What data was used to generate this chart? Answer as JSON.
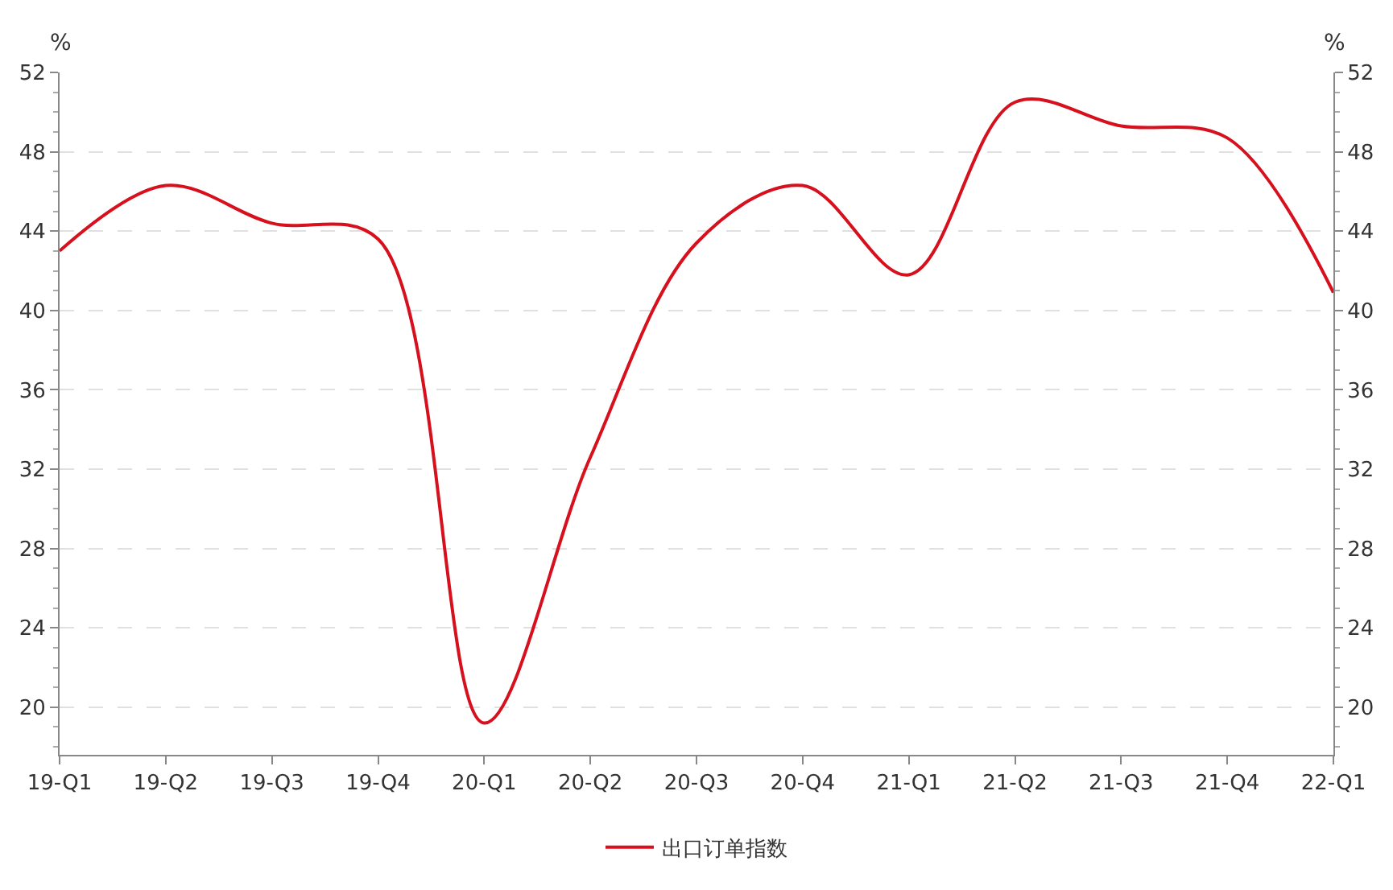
{
  "chart_data": {
    "type": "line",
    "ylabel": "%",
    "y2label": "%",
    "categories": [
      "19-Q1",
      "19-Q2",
      "19-Q3",
      "19-Q4",
      "20-Q1",
      "20-Q2",
      "20-Q3",
      "20-Q4",
      "21-Q1",
      "21-Q2",
      "21-Q3",
      "21-Q4",
      "22-Q1"
    ],
    "series": [
      {
        "name": "出口订单指数",
        "color": "#d7101e",
        "values": [
          43.0,
          46.3,
          44.4,
          43.6,
          19.2,
          32.6,
          43.4,
          46.3,
          41.8,
          50.5,
          49.3,
          48.7,
          40.9
        ]
      }
    ],
    "ylim": [
      17.6,
      52
    ],
    "yticks": [
      20,
      24,
      28,
      32,
      36,
      40,
      44,
      48,
      52
    ],
    "y2lim": [
      17.6,
      52
    ],
    "y2ticks": [
      20,
      24,
      28,
      32,
      36,
      40,
      44,
      48,
      52
    ],
    "grid": "y",
    "legend": "bottom",
    "marker": "none",
    "line_style": "solid"
  }
}
